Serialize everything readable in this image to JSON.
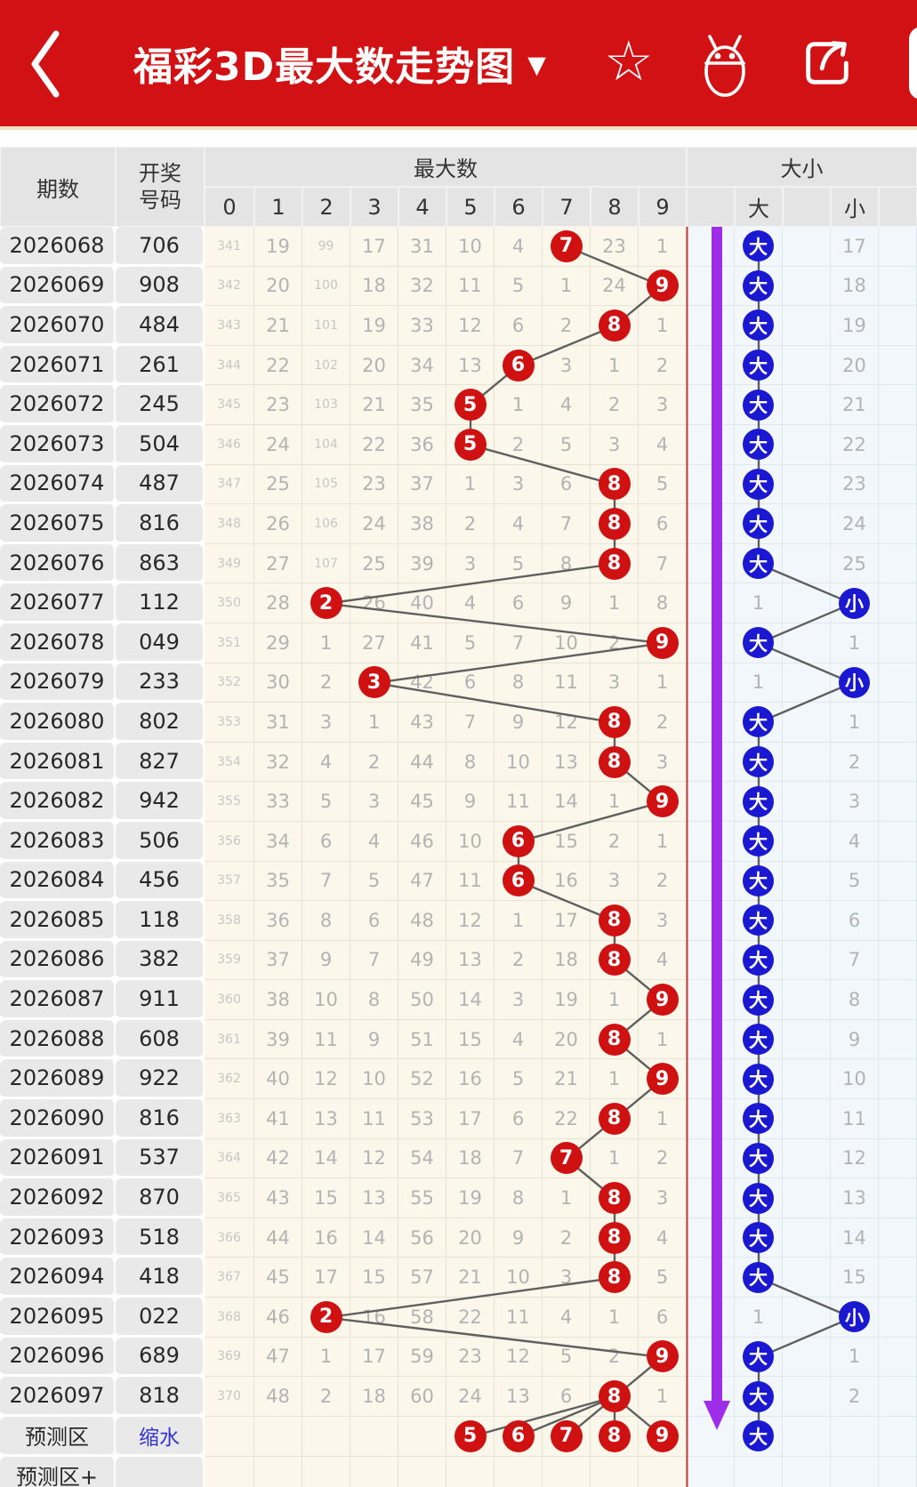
{
  "app_bar": {
    "title": "福彩3D最大数走势图",
    "title_dropdown_glyph": "▼",
    "star_glyph": "☆",
    "icons": [
      "back-chevron-icon",
      "favorite-star-icon",
      "android-icon",
      "share-icon",
      "partial-right-button"
    ]
  },
  "table": {
    "headers": {
      "period": "期数",
      "draw_line1": "开奖",
      "draw_line2": "号码",
      "max_group": "最大数",
      "digits": [
        "0",
        "1",
        "2",
        "3",
        "4",
        "5",
        "6",
        "7",
        "8",
        "9"
      ],
      "size_group": "大小",
      "big": "大",
      "small": "小"
    },
    "rows": [
      {
        "period": "2026068",
        "draw": "706",
        "cells": [
          "341",
          "19",
          "99",
          "17",
          "31",
          "10",
          "4",
          "7",
          "23",
          "1"
        ],
        "hit": 7,
        "size": "big",
        "miss": "17"
      },
      {
        "period": "2026069",
        "draw": "908",
        "cells": [
          "342",
          "20",
          "100",
          "18",
          "32",
          "11",
          "5",
          "1",
          "24",
          "9"
        ],
        "hit": 9,
        "size": "big",
        "miss": "18"
      },
      {
        "period": "2026070",
        "draw": "484",
        "cells": [
          "343",
          "21",
          "101",
          "19",
          "33",
          "12",
          "6",
          "2",
          "8",
          "1"
        ],
        "hit": 8,
        "size": "big",
        "miss": "19"
      },
      {
        "period": "2026071",
        "draw": "261",
        "cells": [
          "344",
          "22",
          "102",
          "20",
          "34",
          "13",
          "6",
          "3",
          "1",
          "2"
        ],
        "hit": 6,
        "size": "big",
        "miss": "20"
      },
      {
        "period": "2026072",
        "draw": "245",
        "cells": [
          "345",
          "23",
          "103",
          "21",
          "35",
          "5",
          "1",
          "4",
          "2",
          "3"
        ],
        "hit": 5,
        "size": "big",
        "miss": "21"
      },
      {
        "period": "2026073",
        "draw": "504",
        "cells": [
          "346",
          "24",
          "104",
          "22",
          "36",
          "5",
          "2",
          "5",
          "3",
          "4"
        ],
        "hit": 5,
        "size": "big",
        "miss": "22"
      },
      {
        "period": "2026074",
        "draw": "487",
        "cells": [
          "347",
          "25",
          "105",
          "23",
          "37",
          "1",
          "3",
          "6",
          "8",
          "5"
        ],
        "hit": 8,
        "size": "big",
        "miss": "23"
      },
      {
        "period": "2026075",
        "draw": "816",
        "cells": [
          "348",
          "26",
          "106",
          "24",
          "38",
          "2",
          "4",
          "7",
          "8",
          "6"
        ],
        "hit": 8,
        "size": "big",
        "miss": "24"
      },
      {
        "period": "2026076",
        "draw": "863",
        "cells": [
          "349",
          "27",
          "107",
          "25",
          "39",
          "3",
          "5",
          "8",
          "8",
          "7"
        ],
        "hit": 8,
        "size": "big",
        "miss": "25"
      },
      {
        "period": "2026077",
        "draw": "112",
        "cells": [
          "350",
          "28",
          "2",
          "26",
          "40",
          "4",
          "6",
          "9",
          "1",
          "8"
        ],
        "hit": 2,
        "size": "small",
        "miss": "1"
      },
      {
        "period": "2026078",
        "draw": "049",
        "cells": [
          "351",
          "29",
          "1",
          "27",
          "41",
          "5",
          "7",
          "10",
          "2",
          "9"
        ],
        "hit": 9,
        "size": "big",
        "miss": "1"
      },
      {
        "period": "2026079",
        "draw": "233",
        "cells": [
          "352",
          "30",
          "2",
          "3",
          "42",
          "6",
          "8",
          "11",
          "3",
          "1"
        ],
        "hit": 3,
        "size": "small",
        "miss": "1"
      },
      {
        "period": "2026080",
        "draw": "802",
        "cells": [
          "353",
          "31",
          "3",
          "1",
          "43",
          "7",
          "9",
          "12",
          "8",
          "2"
        ],
        "hit": 8,
        "size": "big",
        "miss": "1"
      },
      {
        "period": "2026081",
        "draw": "827",
        "cells": [
          "354",
          "32",
          "4",
          "2",
          "44",
          "8",
          "10",
          "13",
          "8",
          "3"
        ],
        "hit": 8,
        "size": "big",
        "miss": "2"
      },
      {
        "period": "2026082",
        "draw": "942",
        "cells": [
          "355",
          "33",
          "5",
          "3",
          "45",
          "9",
          "11",
          "14",
          "1",
          "9"
        ],
        "hit": 9,
        "size": "big",
        "miss": "3"
      },
      {
        "period": "2026083",
        "draw": "506",
        "cells": [
          "356",
          "34",
          "6",
          "4",
          "46",
          "10",
          "6",
          "15",
          "2",
          "1"
        ],
        "hit": 6,
        "size": "big",
        "miss": "4"
      },
      {
        "period": "2026084",
        "draw": "456",
        "cells": [
          "357",
          "35",
          "7",
          "5",
          "47",
          "11",
          "6",
          "16",
          "3",
          "2"
        ],
        "hit": 6,
        "size": "big",
        "miss": "5"
      },
      {
        "period": "2026085",
        "draw": "118",
        "cells": [
          "358",
          "36",
          "8",
          "6",
          "48",
          "12",
          "1",
          "17",
          "8",
          "3"
        ],
        "hit": 8,
        "size": "big",
        "miss": "6"
      },
      {
        "period": "2026086",
        "draw": "382",
        "cells": [
          "359",
          "37",
          "9",
          "7",
          "49",
          "13",
          "2",
          "18",
          "8",
          "4"
        ],
        "hit": 8,
        "size": "big",
        "miss": "7"
      },
      {
        "period": "2026087",
        "draw": "911",
        "cells": [
          "360",
          "38",
          "10",
          "8",
          "50",
          "14",
          "3",
          "19",
          "1",
          "9"
        ],
        "hit": 9,
        "size": "big",
        "miss": "8"
      },
      {
        "period": "2026088",
        "draw": "608",
        "cells": [
          "361",
          "39",
          "11",
          "9",
          "51",
          "15",
          "4",
          "20",
          "8",
          "1"
        ],
        "hit": 8,
        "size": "big",
        "miss": "9"
      },
      {
        "period": "2026089",
        "draw": "922",
        "cells": [
          "362",
          "40",
          "12",
          "10",
          "52",
          "16",
          "5",
          "21",
          "1",
          "9"
        ],
        "hit": 9,
        "size": "big",
        "miss": "10"
      },
      {
        "period": "2026090",
        "draw": "816",
        "cells": [
          "363",
          "41",
          "13",
          "11",
          "53",
          "17",
          "6",
          "22",
          "8",
          "1"
        ],
        "hit": 8,
        "size": "big",
        "miss": "11"
      },
      {
        "period": "2026091",
        "draw": "537",
        "cells": [
          "364",
          "42",
          "14",
          "12",
          "54",
          "18",
          "7",
          "7",
          "1",
          "2"
        ],
        "hit": 7,
        "size": "big",
        "miss": "12"
      },
      {
        "period": "2026092",
        "draw": "870",
        "cells": [
          "365",
          "43",
          "15",
          "13",
          "55",
          "19",
          "8",
          "1",
          "8",
          "3"
        ],
        "hit": 8,
        "size": "big",
        "miss": "13"
      },
      {
        "period": "2026093",
        "draw": "518",
        "cells": [
          "366",
          "44",
          "16",
          "14",
          "56",
          "20",
          "9",
          "2",
          "8",
          "4"
        ],
        "hit": 8,
        "size": "big",
        "miss": "14"
      },
      {
        "period": "2026094",
        "draw": "418",
        "cells": [
          "367",
          "45",
          "17",
          "15",
          "57",
          "21",
          "10",
          "3",
          "8",
          "5"
        ],
        "hit": 8,
        "size": "big",
        "miss": "15"
      },
      {
        "period": "2026095",
        "draw": "022",
        "cells": [
          "368",
          "46",
          "2",
          "16",
          "58",
          "22",
          "11",
          "4",
          "1",
          "6"
        ],
        "hit": 2,
        "size": "small",
        "miss": "1"
      },
      {
        "period": "2026096",
        "draw": "689",
        "cells": [
          "369",
          "47",
          "1",
          "17",
          "59",
          "23",
          "12",
          "5",
          "2",
          "9"
        ],
        "hit": 9,
        "size": "big",
        "miss": "1"
      },
      {
        "period": "2026097",
        "draw": "818",
        "cells": [
          "370",
          "48",
          "2",
          "18",
          "60",
          "24",
          "13",
          "6",
          "8",
          "1"
        ],
        "hit": 8,
        "size": "big",
        "miss": "2"
      }
    ],
    "prediction": {
      "label": "预测区",
      "link": "缩水",
      "digits": [
        "5",
        "6",
        "7",
        "8",
        "9"
      ],
      "big": "大"
    },
    "prediction_plus": {
      "label": "预测区+"
    }
  },
  "colors": {
    "app_bar_red": "#d21114",
    "red_circle": "#d01112",
    "blue_circle": "#1b18d2",
    "purple_arrow": "#9e2de8",
    "link_blue": "#3434d6",
    "cream_bg": "#fbf7ea",
    "size_area_bg": "#f2f7fc",
    "gray_col_bg": "#e9e9e9",
    "header_bg": "#e4e4e4",
    "divider_red": "#c43b3b",
    "chain_line": "#5f5f5f",
    "miss_text": "#b3b3b3",
    "miss_small_text": "#c6c6c6"
  }
}
